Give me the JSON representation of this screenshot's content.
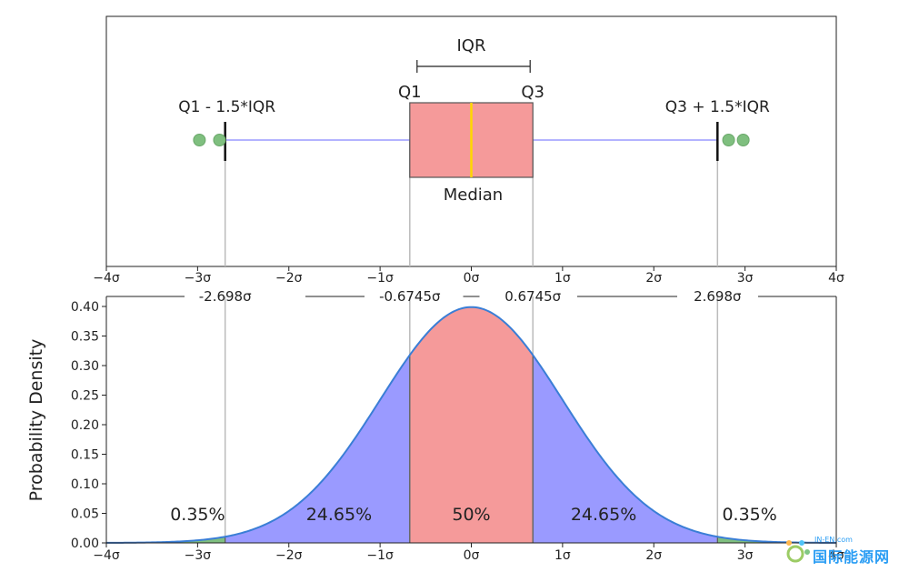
{
  "chart_data": [
    {
      "type": "box",
      "xlim": [
        -4,
        4
      ],
      "x_ticks": [
        -4,
        -3,
        -2,
        -1,
        0,
        1,
        2,
        3,
        4
      ],
      "x_tick_labels": [
        "−4σ",
        "−3σ",
        "−2σ",
        "−1σ",
        "0σ",
        "1σ",
        "2σ",
        "3σ",
        "4σ"
      ],
      "q1": -0.6745,
      "median": 0,
      "q3": 0.6745,
      "whisker_low": -2.698,
      "whisker_high": 2.698,
      "outliers": [
        -2.98,
        -2.76,
        2.82,
        2.98
      ],
      "colors": {
        "box": "#f59a9a",
        "median": "#ffd700",
        "whisker": "#9a9aff",
        "outlier": "#7fbf7f",
        "vline": "#bbbbbb"
      },
      "annotations": {
        "iqr": "IQR",
        "q1": "Q1",
        "q3": "Q3",
        "lower": "Q1 - 1.5*IQR",
        "upper": "Q3 + 1.5*IQR",
        "median": "Median"
      }
    },
    {
      "type": "area",
      "curve": "normal pdf",
      "xlim": [
        -4,
        4
      ],
      "ylim": [
        0,
        0.4
      ],
      "ylabel": "Probability Density",
      "x_ticks": [
        -4,
        -3,
        -2,
        -1,
        0,
        1,
        2,
        3,
        4
      ],
      "x_tick_labels": [
        "−4σ",
        "−3σ",
        "−2σ",
        "−1σ",
        "0σ",
        "1σ",
        "2σ",
        "3σ",
        "4σ"
      ],
      "y_ticks": [
        0,
        0.05,
        0.1,
        0.15,
        0.2,
        0.25,
        0.3,
        0.35,
        0.4
      ],
      "y_tick_labels": [
        "0.00",
        "0.05",
        "0.10",
        "0.15",
        "0.20",
        "0.25",
        "0.30",
        "0.35",
        "0.40"
      ],
      "boundaries": [
        {
          "x": -2.698,
          "label": "-2.698σ"
        },
        {
          "x": -0.6745,
          "label": "-0.6745σ"
        },
        {
          "x": 0.6745,
          "label": "0.6745σ"
        },
        {
          "x": 2.698,
          "label": "2.698σ"
        }
      ],
      "regions": [
        {
          "from": -4,
          "to": -2.698,
          "percent_label": "0.35%",
          "label_x": -3,
          "color": "#7fbf7f"
        },
        {
          "from": -2.698,
          "to": -0.6745,
          "percent_label": "24.65%",
          "label_x": -1.45,
          "color": "#9a9aff"
        },
        {
          "from": -0.6745,
          "to": 0.6745,
          "percent_label": "50%",
          "label_x": 0,
          "color": "#f59a9a"
        },
        {
          "from": 0.6745,
          "to": 2.698,
          "percent_label": "24.65%",
          "label_x": 1.45,
          "color": "#9a9aff"
        },
        {
          "from": 2.698,
          "to": 4,
          "percent_label": "0.35%",
          "label_x": 3.05,
          "color": "#7fbf7f"
        }
      ],
      "line_color": "#3a7ed6"
    }
  ],
  "watermark": {
    "small": "IN-EN.com",
    "big": "国际能源网"
  }
}
